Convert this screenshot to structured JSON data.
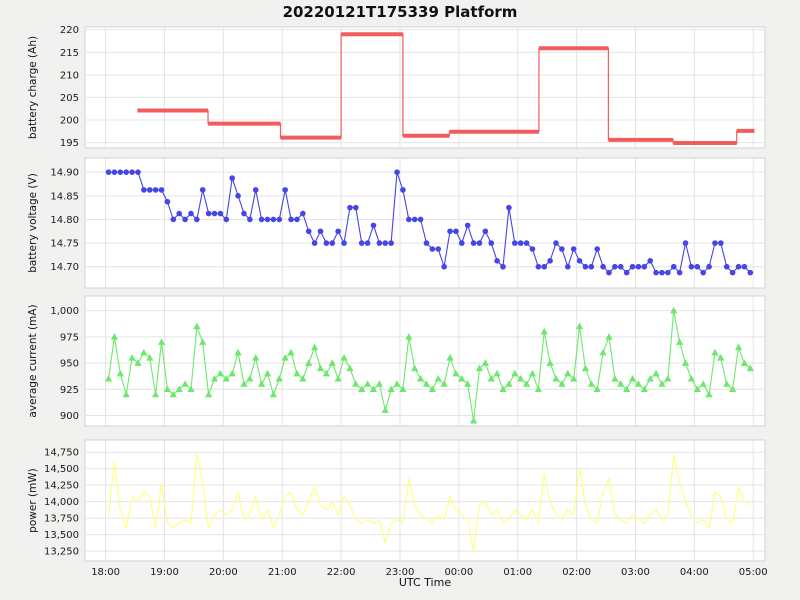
{
  "title": "20220121T175339 Platform",
  "xlabel": "UTC Time",
  "figure_background": "#f1f1ef",
  "x_axis": {
    "min": 17.65,
    "max": 29.2,
    "ticks": [
      18,
      19,
      20,
      21,
      22,
      23,
      24,
      25,
      26,
      27,
      28,
      29
    ],
    "tick_labels": [
      "18:00",
      "19:00",
      "20:00",
      "21:00",
      "22:00",
      "23:00",
      "00:00",
      "01:00",
      "02:00",
      "03:00",
      "04:00",
      "05:00"
    ]
  },
  "x_values": [
    18.05,
    18.15,
    18.25,
    18.35,
    18.45,
    18.55,
    18.65,
    18.75,
    18.85,
    18.95,
    19.05,
    19.15,
    19.25,
    19.35,
    19.45,
    19.55,
    19.65,
    19.75,
    19.85,
    19.95,
    20.05,
    20.15,
    20.25,
    20.35,
    20.45,
    20.55,
    20.65,
    20.75,
    20.85,
    20.95,
    21.05,
    21.15,
    21.25,
    21.35,
    21.45,
    21.55,
    21.65,
    21.75,
    21.85,
    21.95,
    22.05,
    22.15,
    22.25,
    22.35,
    22.45,
    22.55,
    22.65,
    22.75,
    22.85,
    22.95,
    23.05,
    23.15,
    23.25,
    23.35,
    23.45,
    23.55,
    23.65,
    23.75,
    23.85,
    23.95,
    24.05,
    24.15,
    24.25,
    24.35,
    24.45,
    24.55,
    24.65,
    24.75,
    24.85,
    24.95,
    25.05,
    25.15,
    25.25,
    25.35,
    25.45,
    25.55,
    25.65,
    25.75,
    25.85,
    25.95,
    26.05,
    26.15,
    26.25,
    26.35,
    26.45,
    26.55,
    26.65,
    26.75,
    26.85,
    26.95,
    27.05,
    27.15,
    27.25,
    27.35,
    27.45,
    27.55,
    27.65,
    27.75,
    27.85,
    27.95,
    28.05,
    28.15,
    28.25,
    28.35,
    28.45,
    28.55,
    28.65,
    28.75,
    28.85,
    28.95
  ],
  "chart_data": [
    {
      "type": "step",
      "name": "battery-charge",
      "ylabel": "battery charge (Ah)",
      "color": "#f25c5c",
      "line_width": 4,
      "ylim": [
        193.8,
        220.6
      ],
      "yticks": [
        195,
        200,
        205,
        210,
        215,
        220
      ],
      "ytick_labels": [
        "195",
        "200",
        "205",
        "210",
        "215",
        "220"
      ],
      "segments": [
        [
          18.54,
          19.74,
          202.1
        ],
        [
          19.74,
          20.97,
          199.2
        ],
        [
          20.97,
          22.0,
          196.1
        ],
        [
          22.0,
          23.05,
          219.0
        ],
        [
          23.05,
          23.84,
          196.5
        ],
        [
          23.84,
          25.36,
          197.4
        ],
        [
          25.36,
          26.54,
          215.9
        ],
        [
          26.54,
          27.64,
          195.6
        ],
        [
          27.64,
          28.72,
          194.9
        ],
        [
          28.72,
          29.02,
          197.6
        ]
      ]
    },
    {
      "type": "line",
      "name": "battery-voltage",
      "ylabel": "battery voltage (V)",
      "color": "#4545e8",
      "marker": "circle",
      "ylim": [
        14.655,
        14.93
      ],
      "yticks": [
        14.7,
        14.75,
        14.8,
        14.85,
        14.9
      ],
      "ytick_labels": [
        "14.70",
        "14.75",
        "14.80",
        "14.85",
        "14.90"
      ],
      "y": [
        14.9,
        14.9,
        14.9,
        14.9,
        14.9,
        14.9,
        14.8625,
        14.8625,
        14.8625,
        14.8625,
        14.8375,
        14.8,
        14.8125,
        14.8,
        14.8125,
        14.8,
        14.8625,
        14.8125,
        14.8125,
        14.8125,
        14.8,
        14.8875,
        14.85,
        14.8125,
        14.8,
        14.8625,
        14.8,
        14.8,
        14.8,
        14.8,
        14.8625,
        14.8,
        14.8,
        14.8125,
        14.775,
        14.75,
        14.775,
        14.75,
        14.75,
        14.775,
        14.75,
        14.825,
        14.825,
        14.75,
        14.75,
        14.7875,
        14.75,
        14.75,
        14.75,
        14.9,
        14.8625,
        14.8,
        14.8,
        14.8,
        14.75,
        14.7375,
        14.7375,
        14.7,
        14.775,
        14.775,
        14.75,
        14.7875,
        14.75,
        14.75,
        14.775,
        14.75,
        14.7125,
        14.7,
        14.825,
        14.75,
        14.75,
        14.75,
        14.7375,
        14.7,
        14.7,
        14.7125,
        14.75,
        14.7375,
        14.7,
        14.7375,
        14.7125,
        14.7,
        14.7,
        14.7375,
        14.7,
        14.6875,
        14.7,
        14.7,
        14.6875,
        14.7,
        14.7,
        14.7,
        14.7125,
        14.6875,
        14.6875,
        14.6875,
        14.7,
        14.6875,
        14.75,
        14.7,
        14.7,
        14.6875,
        14.7,
        14.75,
        14.75,
        14.7,
        14.6875,
        14.7,
        14.7,
        14.6875
      ]
    },
    {
      "type": "line",
      "name": "average-current",
      "ylabel": "average current (mA)",
      "color": "#6de86d",
      "marker": "triangle",
      "ylim": [
        890,
        1014
      ],
      "yticks": [
        900,
        925,
        950,
        975,
        1000
      ],
      "ytick_labels": [
        "900",
        "925",
        "950",
        "975",
        "1,000"
      ],
      "y": [
        935,
        975,
        940,
        920,
        955,
        950,
        960,
        955,
        920,
        970,
        925,
        920,
        925,
        930,
        925,
        985,
        970,
        920,
        935,
        940,
        935,
        940,
        960,
        930,
        935,
        955,
        930,
        940,
        920,
        935,
        955,
        960,
        940,
        935,
        950,
        965,
        945,
        940,
        950,
        935,
        955,
        945,
        930,
        925,
        930,
        925,
        930,
        905,
        925,
        930,
        925,
        975,
        945,
        935,
        930,
        925,
        935,
        930,
        955,
        940,
        935,
        930,
        895,
        945,
        950,
        935,
        940,
        925,
        930,
        940,
        935,
        930,
        940,
        925,
        980,
        950,
        935,
        930,
        940,
        935,
        985,
        945,
        930,
        925,
        960,
        975,
        935,
        930,
        925,
        935,
        930,
        925,
        935,
        940,
        930,
        935,
        1000,
        970,
        950,
        935,
        925,
        930,
        920,
        960,
        955,
        930,
        925,
        965,
        950,
        945
      ]
    },
    {
      "type": "line",
      "name": "power",
      "ylabel": "power (mW)",
      "color": "#ffff7a",
      "marker": "none",
      "ylim": [
        13100,
        14935
      ],
      "yticks": [
        13250,
        13500,
        13750,
        14000,
        14250,
        14500,
        14750
      ],
      "ytick_labels": [
        "13,250",
        "13,500",
        "13,750",
        "14,000",
        "14,250",
        "14,500",
        "14,750"
      ],
      "y": [
        13800,
        14600,
        13875,
        13600,
        14075,
        14000,
        14150,
        14075,
        13600,
        14275,
        13675,
        13600,
        13675,
        13725,
        13675,
        14725,
        14275,
        13600,
        13800,
        13875,
        13800,
        13875,
        14150,
        13725,
        13800,
        14075,
        13725,
        13875,
        13600,
        13800,
        14075,
        14150,
        13875,
        13800,
        14000,
        14225,
        13950,
        13875,
        14000,
        13800,
        14075,
        13950,
        13725,
        13675,
        13725,
        13675,
        13725,
        13375,
        13675,
        13725,
        13675,
        14350,
        13950,
        13800,
        13725,
        13675,
        13800,
        13725,
        14075,
        13875,
        13800,
        13725,
        13250,
        13950,
        14000,
        13800,
        13875,
        13675,
        13725,
        13875,
        13800,
        13725,
        13875,
        13675,
        14425,
        14000,
        13800,
        13725,
        13875,
        13800,
        14500,
        13950,
        13725,
        13675,
        14150,
        14350,
        13800,
        13725,
        13675,
        13800,
        13725,
        13675,
        13800,
        13875,
        13725,
        13800,
        14700,
        14275,
        14000,
        13800,
        13675,
        13725,
        13600,
        14150,
        14075,
        13725,
        13675,
        14225,
        14000,
        13950
      ]
    }
  ]
}
